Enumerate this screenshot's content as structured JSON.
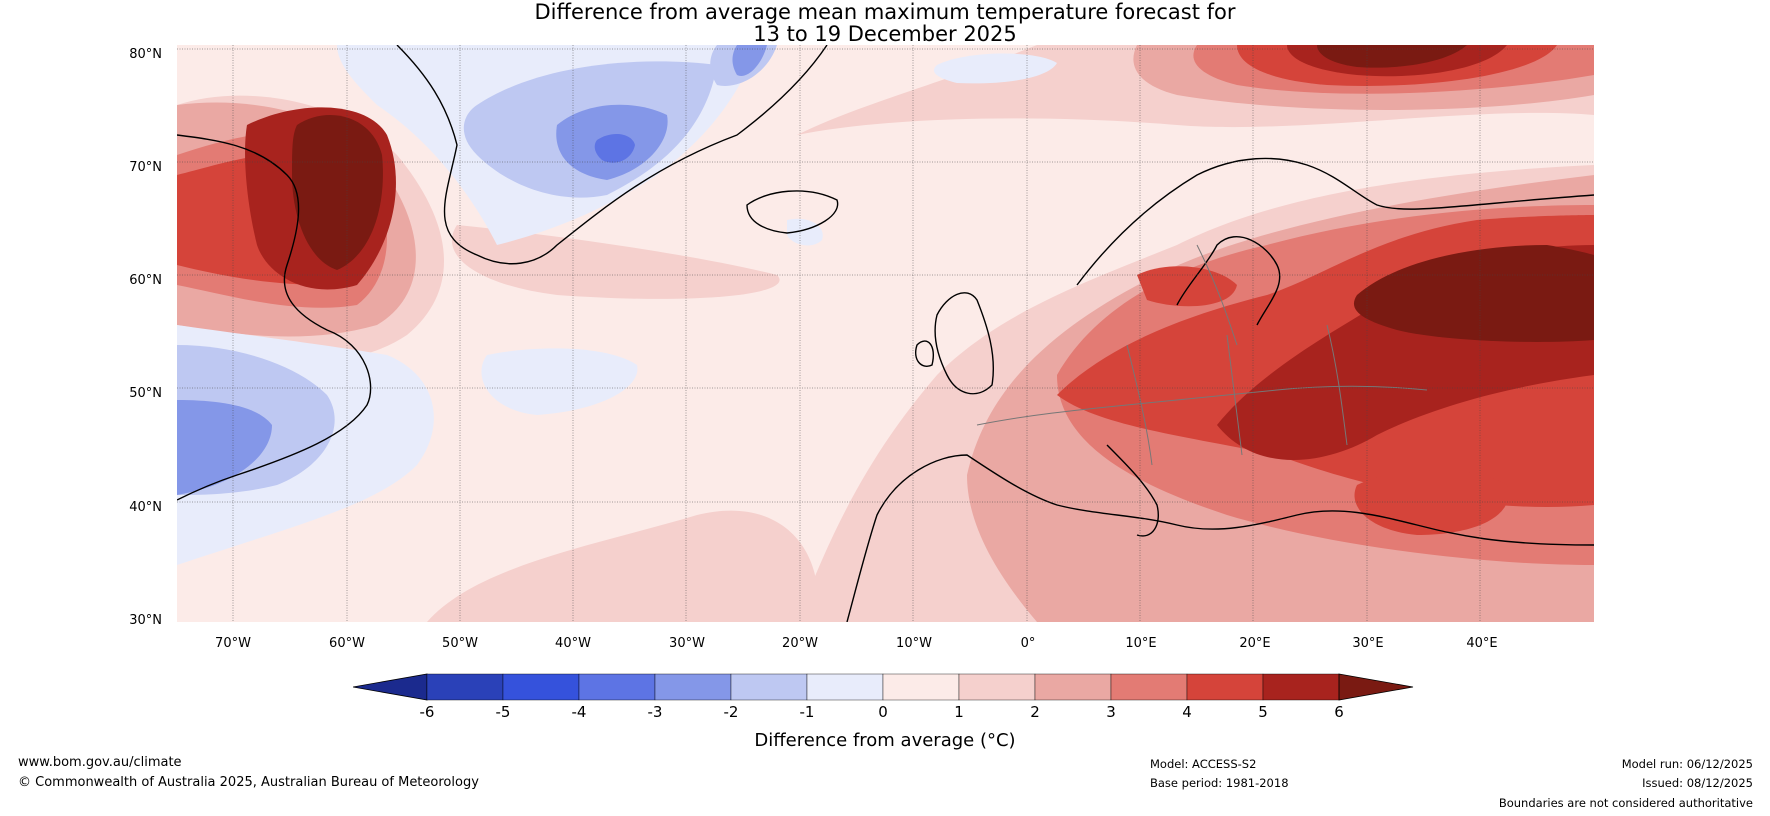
{
  "title": {
    "line1": "Difference from average mean maximum temperature forecast for",
    "line2": "13 to 19 December 2025"
  },
  "map": {
    "lat_labels": [
      "80°N",
      "70°N",
      "60°N",
      "50°N",
      "40°N",
      "30°N"
    ],
    "lon_labels": [
      "70°W",
      "60°W",
      "50°W",
      "40°W",
      "30°W",
      "20°W",
      "10°W",
      "0°",
      "10°E",
      "20°E",
      "30°E",
      "40°E"
    ]
  },
  "colorbar": {
    "ticks": [
      "-6",
      "-5",
      "-4",
      "-3",
      "-2",
      "-1",
      "0",
      "1",
      "2",
      "3",
      "4",
      "5",
      "6"
    ],
    "colors": [
      "#1b2a8e",
      "#2a41b8",
      "#3552dc",
      "#5d74e4",
      "#8497e8",
      "#bec8f2",
      "#e8ecfb",
      "#fcebe8",
      "#f5d0cd",
      "#eaa8a3",
      "#e37b74",
      "#d5443a",
      "#a8231e",
      "#7a1a12"
    ],
    "label": "Difference from average (°C)"
  },
  "footer": {
    "website": "www.bom.gov.au/climate",
    "copyright": "© Commonwealth of Australia 2025, Australian Bureau of Meteorology",
    "model": "Model: ACCESS-S2",
    "base_period": "Base period: 1981-2018",
    "model_run": "Model run: 06/12/2025",
    "issued": "Issued: 08/12/2025",
    "disclaimer": "Boundaries are not considered authoritative"
  }
}
